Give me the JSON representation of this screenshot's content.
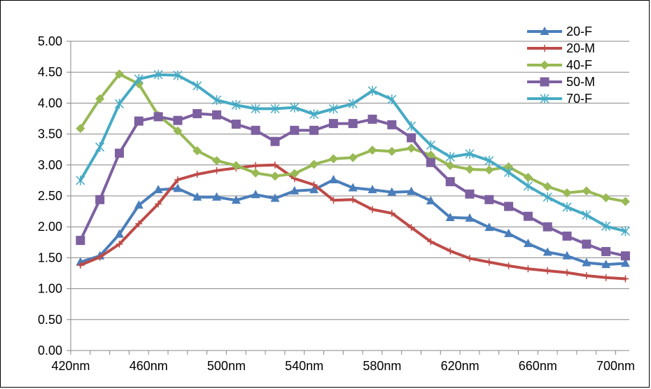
{
  "chart_data": {
    "type": "line",
    "title": "",
    "xlabel": "",
    "ylabel": "",
    "ylim": [
      0,
      5
    ],
    "yticks": [
      "0.00",
      "0.50",
      "1.00",
      "1.50",
      "2.00",
      "2.50",
      "3.00",
      "3.50",
      "4.00",
      "4.50",
      "5.00"
    ],
    "x": [
      425,
      435,
      445,
      455,
      465,
      475,
      485,
      495,
      505,
      515,
      525,
      535,
      545,
      555,
      565,
      575,
      585,
      595,
      605,
      615,
      625,
      635,
      645,
      655,
      665,
      675,
      685,
      695,
      705
    ],
    "xticks": [
      "420nm",
      "460nm",
      "500nm",
      "540nm",
      "580nm",
      "620nm",
      "660nm",
      "700nm"
    ],
    "grid": "horizontal",
    "legend_position": "top-right",
    "series": [
      {
        "name": "20-F",
        "color": "#4a7ebb",
        "marker": "triangle",
        "values": [
          1.43,
          1.53,
          1.88,
          2.35,
          2.6,
          2.62,
          2.48,
          2.48,
          2.43,
          2.52,
          2.46,
          2.58,
          2.6,
          2.76,
          2.63,
          2.6,
          2.56,
          2.57,
          2.42,
          2.15,
          2.14,
          1.99,
          1.89,
          1.73,
          1.59,
          1.53,
          1.42,
          1.39,
          1.41
        ]
      },
      {
        "name": "20-M",
        "color": "#be4b48",
        "marker": "plus",
        "values": [
          1.38,
          1.51,
          1.72,
          2.05,
          2.37,
          2.76,
          2.85,
          2.91,
          2.95,
          2.99,
          3.0,
          2.78,
          2.68,
          2.43,
          2.44,
          2.28,
          2.22,
          1.99,
          1.76,
          1.61,
          1.49,
          1.43,
          1.37,
          1.32,
          1.29,
          1.26,
          1.21,
          1.18,
          1.16
        ]
      },
      {
        "name": "40-F",
        "color": "#98b954",
        "marker": "diamond",
        "values": [
          3.59,
          4.07,
          4.47,
          4.31,
          3.8,
          3.55,
          3.23,
          3.07,
          2.99,
          2.87,
          2.82,
          2.86,
          3.01,
          3.1,
          3.12,
          3.24,
          3.22,
          3.27,
          3.16,
          2.99,
          2.93,
          2.92,
          2.97,
          2.8,
          2.65,
          2.55,
          2.58,
          2.47,
          2.41
        ]
      },
      {
        "name": "50-M",
        "color": "#7d60a0",
        "marker": "square",
        "values": [
          1.78,
          2.44,
          3.19,
          3.71,
          3.78,
          3.72,
          3.83,
          3.81,
          3.66,
          3.56,
          3.38,
          3.56,
          3.56,
          3.67,
          3.67,
          3.74,
          3.65,
          3.44,
          3.04,
          2.73,
          2.53,
          2.44,
          2.33,
          2.17,
          2.0,
          1.85,
          1.72,
          1.6,
          1.53
        ]
      },
      {
        "name": "70-F",
        "color": "#46aac4",
        "marker": "star",
        "values": [
          2.75,
          3.29,
          3.99,
          4.39,
          4.46,
          4.45,
          4.28,
          4.05,
          3.97,
          3.91,
          3.91,
          3.93,
          3.82,
          3.91,
          3.99,
          4.2,
          4.06,
          3.63,
          3.32,
          3.13,
          3.18,
          3.07,
          2.88,
          2.66,
          2.48,
          2.32,
          2.19,
          2.01,
          1.93
        ]
      }
    ]
  }
}
